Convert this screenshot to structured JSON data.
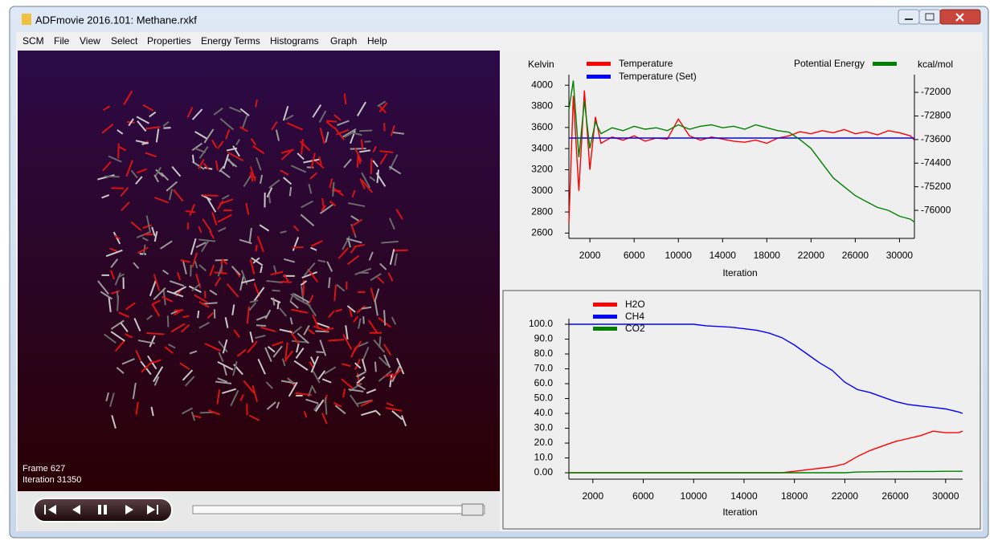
{
  "window": {
    "title": "ADFmovie 2016.101: Methane.rxkf"
  },
  "menu": [
    "SCM",
    "File",
    "View",
    "Select",
    "Properties",
    "Energy Terms",
    "Histograms",
    "Graph",
    "Help"
  ],
  "viewer": {
    "frame": "Frame 627",
    "iteration": "Iteration 31350"
  },
  "chart_data": [
    {
      "type": "line",
      "x_label": "Iteration",
      "y_label": "Kelvin",
      "y2_label": "kcal/mol",
      "x": [
        100,
        500,
        1000,
        1500,
        2000,
        2500,
        3000,
        4000,
        5000,
        6000,
        7000,
        8000,
        9000,
        10000,
        11000,
        12000,
        13000,
        14000,
        15000,
        16000,
        17000,
        18000,
        19000,
        20000,
        21000,
        22000,
        23000,
        24000,
        25000,
        26000,
        27000,
        28000,
        29000,
        30000,
        31000,
        31350
      ],
      "xlim": [
        100,
        31350
      ],
      "xticks": [
        2000,
        6000,
        10000,
        14000,
        18000,
        22000,
        26000,
        30000
      ],
      "ylim": [
        2550,
        4100
      ],
      "yticks": [
        2600,
        2800,
        3000,
        3200,
        3400,
        3600,
        3800,
        4000
      ],
      "y2lim": [
        -76950,
        -71400
      ],
      "y2ticks": [
        -76000,
        -75200,
        -74400,
        -73600,
        -72800,
        -72000
      ],
      "series": [
        {
          "name": "Temperature",
          "color": "#ff0000",
          "values": [
            2700,
            3900,
            3000,
            3950,
            3200,
            3700,
            3450,
            3510,
            3480,
            3520,
            3470,
            3500,
            3490,
            3680,
            3520,
            3480,
            3510,
            3490,
            3470,
            3460,
            3480,
            3450,
            3500,
            3520,
            3560,
            3540,
            3570,
            3550,
            3580,
            3540,
            3560,
            3530,
            3570,
            3550,
            3520,
            3480
          ]
        },
        {
          "name": "Temperature (Set)",
          "color": "#0000ff",
          "values": [
            3500,
            3500,
            3500,
            3500,
            3500,
            3500,
            3500,
            3500,
            3500,
            3500,
            3500,
            3500,
            3500,
            3500,
            3500,
            3500,
            3500,
            3500,
            3500,
            3500,
            3500,
            3500,
            3500,
            3500,
            3500,
            3500,
            3500,
            3500,
            3500,
            3500,
            3500,
            3500,
            3500,
            3500,
            3500,
            3500
          ]
        },
        {
          "name": "Potential Energy",
          "color": "#008000",
          "axis": "y2",
          "values": [
            -72600,
            -71600,
            -74200,
            -72300,
            -73900,
            -73000,
            -73400,
            -73200,
            -73300,
            -73150,
            -73250,
            -73200,
            -73300,
            -73100,
            -73250,
            -73150,
            -73100,
            -73200,
            -73150,
            -73250,
            -73100,
            -73200,
            -73300,
            -73350,
            -73600,
            -73900,
            -74400,
            -74900,
            -75200,
            -75500,
            -75700,
            -75900,
            -76000,
            -76200,
            -76300,
            -76400
          ]
        }
      ]
    },
    {
      "type": "line",
      "x_label": "Iteration",
      "x": [
        100,
        1000,
        2000,
        3000,
        4000,
        5000,
        6000,
        7000,
        8000,
        9000,
        10000,
        11000,
        12000,
        13000,
        14000,
        15000,
        16000,
        17000,
        18000,
        19000,
        20000,
        21000,
        22000,
        23000,
        24000,
        25000,
        26000,
        27000,
        28000,
        29000,
        30000,
        31000,
        31350
      ],
      "xlim": [
        100,
        31350
      ],
      "xticks": [
        2000,
        6000,
        10000,
        14000,
        18000,
        22000,
        26000,
        30000
      ],
      "ylim": [
        -4.3,
        103.8
      ],
      "yticks": [
        {
          "value": 0,
          "label": "0.00"
        },
        {
          "value": 10,
          "label": "10.0"
        },
        {
          "value": 20,
          "label": "20.0"
        },
        {
          "value": 30,
          "label": "30.0"
        },
        {
          "value": 40,
          "label": "40.0"
        },
        {
          "value": 50,
          "label": "50.0"
        },
        {
          "value": 60,
          "label": "60.0"
        },
        {
          "value": 70,
          "label": "70.0"
        },
        {
          "value": 80,
          "label": "80.0"
        },
        {
          "value": 90,
          "label": "90.0"
        },
        {
          "value": 100,
          "label": "100.0"
        }
      ],
      "series": [
        {
          "name": "H2O",
          "color": "#ff0000",
          "values": [
            0,
            0,
            0,
            0,
            0,
            0,
            0,
            0,
            0,
            0,
            0,
            0,
            0,
            0,
            0,
            0,
            0,
            0,
            1,
            2,
            3,
            4,
            6,
            11,
            15,
            18,
            21,
            23,
            25,
            28,
            27,
            27,
            28
          ]
        },
        {
          "name": "CH4",
          "color": "#0000ff",
          "values": [
            100,
            100,
            100,
            100,
            100,
            100,
            100,
            100,
            100,
            100,
            100,
            99,
            98.5,
            98,
            97,
            96,
            94,
            91,
            86,
            80,
            74,
            69,
            61,
            56,
            54,
            51,
            48,
            46,
            45,
            44,
            43,
            41,
            40
          ]
        },
        {
          "name": "CO2",
          "color": "#008000",
          "values": [
            0,
            0,
            0,
            0,
            0,
            0,
            0,
            0,
            0,
            0,
            0,
            0,
            0,
            0,
            0,
            0,
            0,
            0,
            0,
            0,
            0,
            0,
            0,
            0.5,
            0.6,
            0.7,
            0.8,
            0.8,
            0.9,
            0.9,
            1,
            1,
            1
          ]
        }
      ]
    }
  ]
}
